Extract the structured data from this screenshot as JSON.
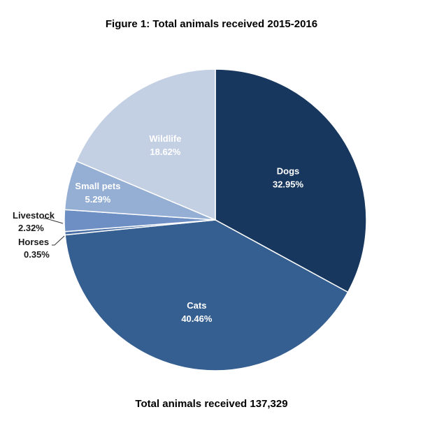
{
  "chart_data": {
    "type": "pie",
    "title": "Figure 1:  Total animals received 2015-2016",
    "footer": "Total animals received 137,329",
    "slices": [
      {
        "label": "Dogs",
        "value_label": "32.95%",
        "value": 32.95,
        "color": "#17375e",
        "label_placement": "inside"
      },
      {
        "label": "Cats",
        "value_label": "40.46%",
        "value": 40.46,
        "color": "#365f91",
        "label_placement": "inside"
      },
      {
        "label": "Horses",
        "value_label": "0.35%",
        "value": 0.35,
        "color": "#4a6fa5",
        "label_placement": "outside"
      },
      {
        "label": "Livestock",
        "value_label": "2.32%",
        "value": 2.32,
        "color": "#6d8fc4",
        "label_placement": "outside"
      },
      {
        "label": "Small pets",
        "value_label": "5.29%",
        "value": 5.29,
        "color": "#95aed4",
        "label_placement": "inside"
      },
      {
        "label": "Wildlife",
        "value_label": "18.62%",
        "value": 18.62,
        "color": "#c3cfe2",
        "label_placement": "inside"
      }
    ],
    "start": "12 o'clock",
    "direction": "clockwise",
    "legend": "none"
  }
}
